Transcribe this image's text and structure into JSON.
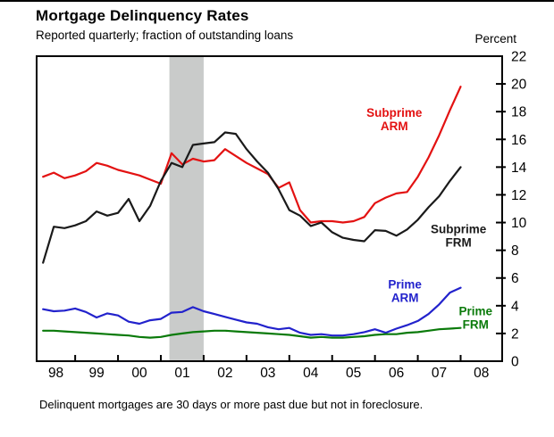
{
  "header": {
    "title": "Mortgage Delinquency Rates",
    "subtitle": "Reported quarterly; fraction of outstanding loans",
    "unit_label": "Percent"
  },
  "footer": {
    "note": "Delinquent mortgages are 30 days or more past due but not in foreclosure."
  },
  "chart_data": {
    "type": "line",
    "title": "Mortgage Delinquency Rates",
    "subtitle": "Reported quarterly; fraction of outstanding loans",
    "ylabel": "Percent",
    "x_start": 1998.25,
    "x_step": 0.25,
    "x_axis": {
      "domain": [
        1998.1,
        2008.97
      ],
      "tick_years": [
        1999,
        2000,
        2001,
        2002,
        2003,
        2004,
        2005,
        2006,
        2007,
        2008
      ],
      "labels": [
        "98",
        "99",
        "00",
        "01",
        "02",
        "03",
        "04",
        "05",
        "06",
        "07",
        "08"
      ]
    },
    "y_axis": {
      "min": 0,
      "max": 22,
      "tick_step": 2,
      "ticks": [
        0,
        2,
        4,
        6,
        8,
        10,
        12,
        14,
        16,
        18,
        20,
        22
      ],
      "unit": "Percent"
    },
    "recession_band": {
      "from": 2001.2,
      "to": 2002.0,
      "color": "#c9cbca"
    },
    "grid": false,
    "legend_position": "inline-labels",
    "series": [
      {
        "id": "subprime-arm",
        "name": "Subprime ARM",
        "label_lines": [
          "Subprime",
          "ARM"
        ],
        "color": "#e31212",
        "label_anchor": {
          "t": 2006.45,
          "v": 17.5
        },
        "values": [
          13.3,
          13.6,
          13.2,
          13.4,
          13.7,
          14.3,
          14.1,
          13.8,
          13.6,
          13.4,
          13.1,
          12.8,
          15.0,
          14.2,
          14.6,
          14.4,
          14.5,
          15.3,
          14.8,
          14.3,
          13.9,
          13.5,
          12.5,
          12.9,
          10.9,
          10.0,
          10.1,
          10.1,
          10.0,
          10.1,
          10.4,
          11.4,
          11.8,
          12.1,
          12.2,
          13.3,
          14.7,
          16.3,
          18.1,
          19.8
        ]
      },
      {
        "id": "subprime-frm",
        "name": "Subprime FRM",
        "label_lines": [
          "Subprime",
          "FRM"
        ],
        "color": "#1a1a1a",
        "label_anchor": {
          "t": 2007.95,
          "v": 9.1
        },
        "values": [
          7.1,
          9.7,
          9.6,
          9.8,
          10.1,
          10.8,
          10.5,
          10.7,
          11.7,
          10.1,
          11.2,
          13.0,
          14.3,
          14.0,
          15.6,
          15.7,
          15.8,
          16.5,
          16.4,
          15.3,
          14.4,
          13.6,
          12.4,
          10.9,
          10.5,
          9.75,
          10.0,
          9.3,
          8.9,
          8.75,
          8.65,
          9.45,
          9.4,
          9.05,
          9.5,
          10.2,
          11.1,
          11.9,
          13.0,
          14.0
        ]
      },
      {
        "id": "prime-arm",
        "name": "Prime ARM",
        "label_lines": [
          "Prime",
          "ARM"
        ],
        "color": "#2222cc",
        "label_anchor": {
          "t": 2006.7,
          "v": 5.1
        },
        "values": [
          3.75,
          3.6,
          3.65,
          3.8,
          3.55,
          3.15,
          3.45,
          3.3,
          2.85,
          2.7,
          2.95,
          3.05,
          3.5,
          3.55,
          3.9,
          3.6,
          3.4,
          3.2,
          3.0,
          2.8,
          2.7,
          2.45,
          2.3,
          2.4,
          2.05,
          1.9,
          1.95,
          1.85,
          1.85,
          1.95,
          2.1,
          2.3,
          2.05,
          2.35,
          2.6,
          2.9,
          3.4,
          4.1,
          4.95,
          5.3
        ]
      },
      {
        "id": "prime-frm",
        "name": "Prime FRM",
        "label_lines": [
          "Prime",
          "FRM"
        ],
        "color": "#0a7a0a",
        "label_anchor": {
          "t": 2008.35,
          "v": 3.2
        },
        "values": [
          2.2,
          2.2,
          2.15,
          2.1,
          2.05,
          2.0,
          1.95,
          1.9,
          1.85,
          1.75,
          1.7,
          1.75,
          1.9,
          2.0,
          2.1,
          2.15,
          2.2,
          2.2,
          2.15,
          2.1,
          2.05,
          2.0,
          1.95,
          1.9,
          1.8,
          1.7,
          1.75,
          1.7,
          1.7,
          1.75,
          1.8,
          1.9,
          1.95,
          1.95,
          2.05,
          2.1,
          2.2,
          2.3,
          2.35,
          2.4
        ]
      }
    ]
  }
}
